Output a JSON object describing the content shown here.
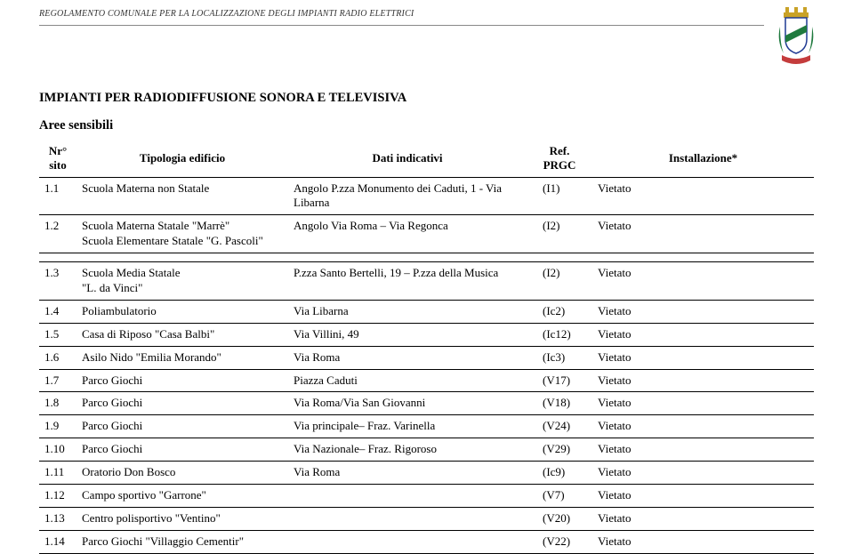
{
  "header": {
    "running_title": "REGOLAMENTO COMUNALE PER LA LOCALIZZAZIONE DEGLI IMPIANTI RADIO ELETTRICI",
    "crest_colors": {
      "crown": "#c9a227",
      "shield_bg": "#ffffff",
      "shield_border": "#1f3a93",
      "band": "#1f7a3e",
      "laurel_left": "#1f7a3e",
      "laurel_right": "#1f7a3e",
      "ribbon": "#c43c3c"
    }
  },
  "title": "IMPIANTI PER RADIODIFFUSIONE SONORA E TELEVISIVA",
  "subtitle": "Aree sensibili",
  "columns": {
    "nr": "Nr° sito",
    "tip": "Tipologia edificio",
    "dati": "Dati indicativi",
    "ref": "Ref. PRGC",
    "inst": "Installazione*"
  },
  "rows_block1": [
    {
      "nr": "1.1",
      "tip": "Scuola Materna non Statale",
      "dati": "Angolo P.zza Monumento dei Caduti, 1 - Via Libarna",
      "ref": "(I1)",
      "inst": "Vietato"
    },
    {
      "nr": "1.2",
      "tip": "Scuola Materna Statale \"Marrè\"\nScuola Elementare Statale \"G. Pascoli\"",
      "dati": "Angolo Via Roma – Via Regonca",
      "ref": "(I2)",
      "inst": "Vietato"
    }
  ],
  "rows_block2": [
    {
      "nr": "1.3",
      "tip": "Scuola Media Statale\n\"L. da Vinci\"",
      "dati": "P.zza Santo Bertelli, 19 – P.zza della Musica",
      "ref": "(I2)",
      "inst": "Vietato"
    },
    {
      "nr": "1.4",
      "tip": "Poliambulatorio",
      "dati": "Via Libarna",
      "ref": "(Ic2)",
      "inst": "Vietato"
    },
    {
      "nr": "1.5",
      "tip": "Casa di Riposo \"Casa Balbi\"",
      "dati": "Via Villini, 49",
      "ref": "(Ic12)",
      "inst": "Vietato"
    },
    {
      "nr": "1.6",
      "tip": "Asilo Nido \"Emilia Morando\"",
      "dati": "Via Roma",
      "ref": "(Ic3)",
      "inst": "Vietato"
    },
    {
      "nr": "1.7",
      "tip": "Parco Giochi",
      "dati": "Piazza Caduti",
      "ref": "(V17)",
      "inst": "Vietato"
    },
    {
      "nr": "1.8",
      "tip": "Parco Giochi",
      "dati": "Via Roma/Via San Giovanni",
      "ref": "(V18)",
      "inst": "Vietato"
    },
    {
      "nr": "1.9",
      "tip": "Parco Giochi",
      "dati": "Via principale– Fraz. Varinella",
      "ref": "(V24)",
      "inst": "Vietato"
    },
    {
      "nr": "1.10",
      "tip": "Parco Giochi",
      "dati": "Via Nazionale– Fraz. Rigoroso",
      "ref": "(V29)",
      "inst": "Vietato"
    },
    {
      "nr": "1.11",
      "tip": "Oratorio Don Bosco",
      "dati": "Via Roma",
      "ref": "(Ic9)",
      "inst": "Vietato"
    },
    {
      "nr": "1.12",
      "tip": "Campo sportivo \"Garrone\"",
      "dati": "",
      "ref": "(V7)",
      "inst": "Vietato"
    },
    {
      "nr": "1.13",
      "tip": "Centro polisportivo \"Ventino\"",
      "dati": "",
      "ref": "(V20)",
      "inst": "Vietato"
    },
    {
      "nr": "1.14",
      "tip": "Parco Giochi \"Villaggio Cementir\"",
      "dati": "",
      "ref": "(V22)",
      "inst": "Vietato"
    }
  ],
  "style": {
    "page_bg": "#ffffff",
    "text_color": "#000000",
    "header_rule_color": "#888888",
    "table_rule_color": "#000000",
    "body_font": "Times New Roman",
    "body_fontsize_pt": 13,
    "title_fontsize_pt": 14.5,
    "header_fontsize_pt": 10
  }
}
